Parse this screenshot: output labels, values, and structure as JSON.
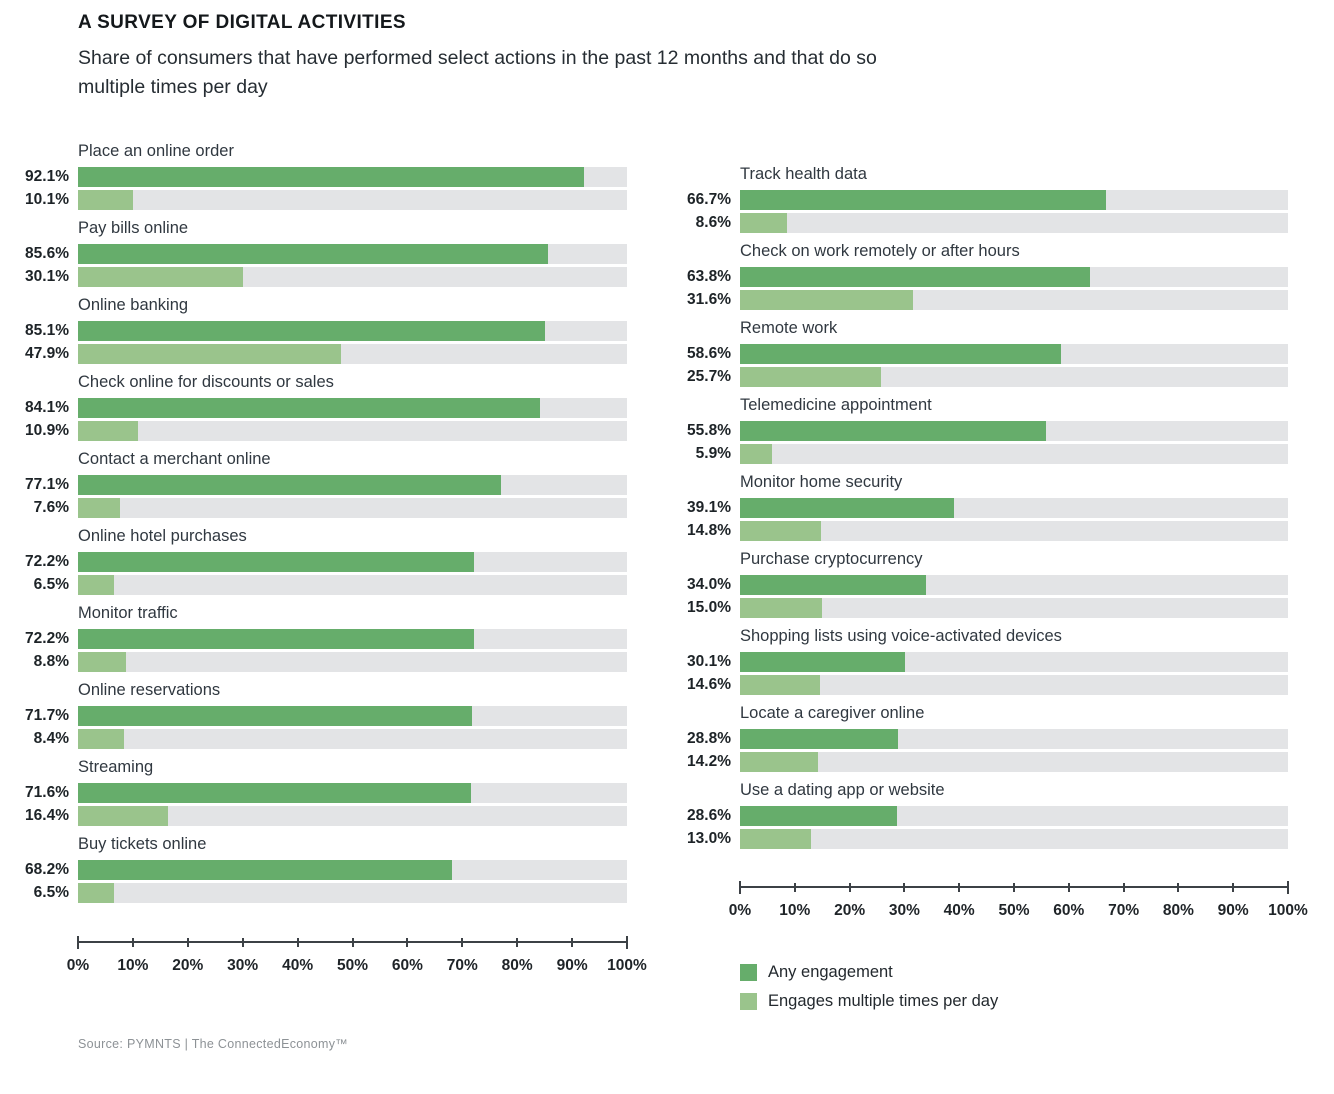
{
  "header": {
    "title": "A SURVEY OF DIGITAL ACTIVITIES",
    "subtitle": "Share of consumers that have performed select actions in the past 12 months and that do so multiple times per day"
  },
  "source": "Source: PYMNTS | The ConnectedEconomy™",
  "colors": {
    "any_engagement": "#66ad6b",
    "multiple_times": "#9ac48c",
    "track": "#e3e4e6",
    "axis": "#3c4146"
  },
  "legend": {
    "items": [
      {
        "label": "Any engagement",
        "color_key": "any_engagement"
      },
      {
        "label": "Engages multiple times per day",
        "color_key": "multiple_times"
      }
    ]
  },
  "chart_data": {
    "type": "bar",
    "orientation": "horizontal",
    "title": "A SURVEY OF DIGITAL ACTIVITIES",
    "subtitle": "Share of consumers that have performed select actions in the past 12 months and that do so multiple times per day",
    "series_names": [
      "Any engagement",
      "Engages multiple times per day"
    ],
    "axis": {
      "min": 0,
      "max": 100,
      "tick_labels": [
        "0%",
        "10%",
        "20%",
        "30%",
        "40%",
        "50%",
        "60%",
        "70%",
        "80%",
        "90%",
        "100%"
      ]
    },
    "legend_position": "bottom-right",
    "panels": [
      {
        "side": "left",
        "items": [
          {
            "label": "Place an online order",
            "values": [
              92.1,
              10.1
            ],
            "display": [
              "92.1%",
              "10.1%"
            ]
          },
          {
            "label": "Pay bills online",
            "values": [
              85.6,
              30.1
            ],
            "display": [
              "85.6%",
              "30.1%"
            ]
          },
          {
            "label": "Online banking",
            "values": [
              85.1,
              47.9
            ],
            "display": [
              "85.1%",
              "47.9%"
            ]
          },
          {
            "label": "Check online for discounts or sales",
            "values": [
              84.1,
              10.9
            ],
            "display": [
              "84.1%",
              "10.9%"
            ]
          },
          {
            "label": "Contact a merchant online",
            "values": [
              77.1,
              7.6
            ],
            "display": [
              "77.1%",
              "7.6%"
            ]
          },
          {
            "label": "Online hotel purchases",
            "values": [
              72.2,
              6.5
            ],
            "display": [
              "72.2%",
              "6.5%"
            ]
          },
          {
            "label": "Monitor traffic",
            "values": [
              72.2,
              8.8
            ],
            "display": [
              "72.2%",
              "8.8%"
            ]
          },
          {
            "label": "Online reservations",
            "values": [
              71.7,
              8.4
            ],
            "display": [
              "71.7%",
              "8.4%"
            ]
          },
          {
            "label": "Streaming",
            "values": [
              71.6,
              16.4
            ],
            "display": [
              "71.6%",
              "16.4%"
            ]
          },
          {
            "label": "Buy tickets online",
            "values": [
              68.2,
              6.5
            ],
            "display": [
              "68.2%",
              "6.5%"
            ]
          }
        ]
      },
      {
        "side": "right",
        "items": [
          {
            "label": "Track health data",
            "values": [
              66.7,
              8.6
            ],
            "display": [
              "66.7%",
              "8.6%"
            ]
          },
          {
            "label": "Check on work remotely or after hours",
            "values": [
              63.8,
              31.6
            ],
            "display": [
              "63.8%",
              "31.6%"
            ]
          },
          {
            "label": "Remote work",
            "values": [
              58.6,
              25.7
            ],
            "display": [
              "58.6%",
              "25.7%"
            ]
          },
          {
            "label": "Telemedicine appointment",
            "values": [
              55.8,
              5.9
            ],
            "display": [
              "55.8%",
              "5.9%"
            ]
          },
          {
            "label": "Monitor home security",
            "values": [
              39.1,
              14.8
            ],
            "display": [
              "39.1%",
              "14.8%"
            ]
          },
          {
            "label": "Purchase cryptocurrency",
            "values": [
              34.0,
              15.0
            ],
            "display": [
              "34.0%",
              "15.0%"
            ]
          },
          {
            "label": "Shopping lists using voice-activated devices",
            "values": [
              30.1,
              14.6
            ],
            "display": [
              "30.1%",
              "14.6%"
            ]
          },
          {
            "label": "Locate a caregiver online",
            "values": [
              28.8,
              14.2
            ],
            "display": [
              "28.8%",
              "14.2%"
            ]
          },
          {
            "label": "Use a dating app or website",
            "values": [
              28.6,
              13.0
            ],
            "display": [
              "28.6%",
              "13.0%"
            ]
          }
        ]
      }
    ]
  }
}
